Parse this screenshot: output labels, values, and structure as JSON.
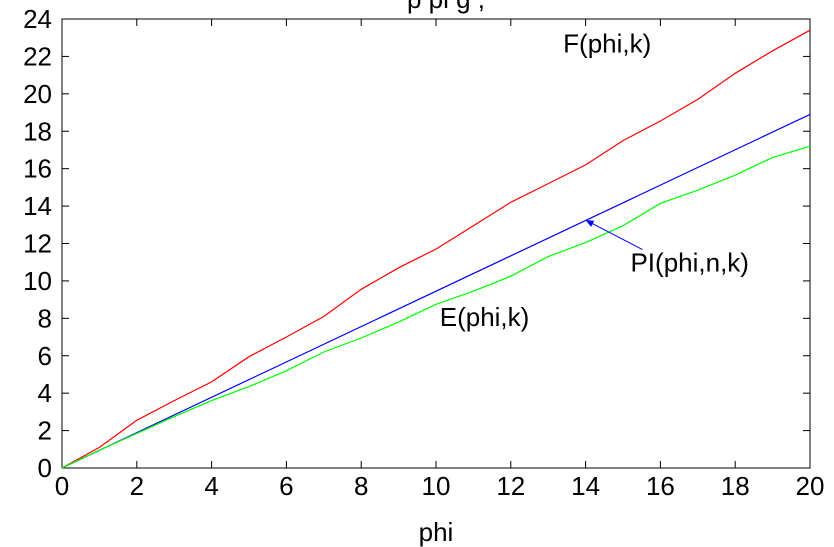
{
  "chart_data": {
    "type": "line",
    "title": "... plots of complete elliptic integrals ... (partially visible, cut off at top)",
    "title_visible_fragment": "p    pl   g         ,",
    "xlabel": "phi",
    "ylabel": "",
    "xlim": [
      0,
      20
    ],
    "ylim": [
      0,
      24
    ],
    "xticks": [
      0,
      2,
      4,
      6,
      8,
      10,
      12,
      14,
      16,
      18,
      20
    ],
    "yticks": [
      0,
      2,
      4,
      6,
      8,
      10,
      12,
      14,
      16,
      18,
      20,
      22,
      24
    ],
    "grid": false,
    "legend": "none",
    "colors": {
      "F": "#ff0000",
      "PI": "#0000ff",
      "E": "#00ff00"
    },
    "series": [
      {
        "name": "F(phi,k)",
        "color": "#ff0000",
        "x": [
          0,
          1,
          2,
          3,
          4,
          5,
          6,
          7,
          8,
          9,
          10,
          11,
          12,
          13,
          14,
          15,
          16,
          17,
          18,
          19,
          20
        ],
        "y": [
          0,
          1.1,
          2.55,
          3.6,
          4.6,
          5.95,
          7.0,
          8.1,
          9.55,
          10.7,
          11.7,
          12.95,
          14.2,
          15.2,
          16.2,
          17.5,
          18.55,
          19.7,
          21.1,
          22.3,
          23.4
        ]
      },
      {
        "name": "PI(phi,n,k)",
        "color": "#0000ff",
        "x": [
          0,
          20
        ],
        "y": [
          0,
          18.9
        ]
      },
      {
        "name": "E(phi,k)",
        "color": "#00ff00",
        "x": [
          0,
          1,
          2,
          3,
          4,
          5,
          6,
          7,
          8,
          9,
          10,
          11,
          12,
          13,
          14,
          15,
          16,
          17,
          18,
          19,
          20
        ],
        "y": [
          0,
          0.95,
          1.85,
          2.75,
          3.6,
          4.35,
          5.2,
          6.2,
          6.95,
          7.8,
          8.75,
          9.45,
          10.25,
          11.3,
          12.05,
          12.95,
          14.15,
          14.85,
          15.65,
          16.6,
          17.2
        ]
      }
    ],
    "annotations": [
      {
        "text": "F(phi,k)",
        "x": 13.4,
        "y": 22.2
      },
      {
        "text": "PI(phi,n,k)",
        "x": 15.2,
        "y": 10.5,
        "arrow_to": [
          14.0,
          13.25
        ]
      },
      {
        "text": "E(phi,k)",
        "x": 10.1,
        "y": 7.6
      }
    ]
  }
}
